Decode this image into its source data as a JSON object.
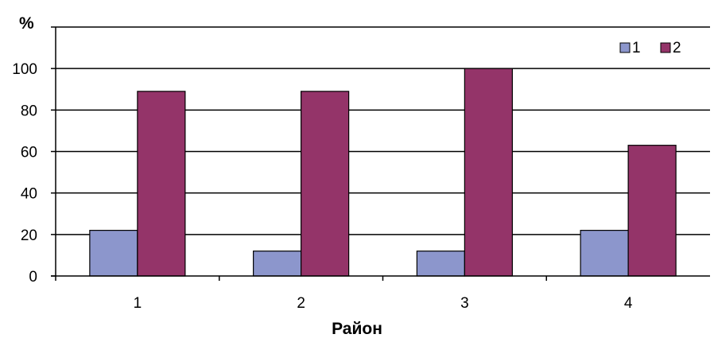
{
  "chart_data": {
    "type": "bar",
    "title": "",
    "ylabel": "%",
    "xlabel": "Район",
    "categories": [
      "1",
      "2",
      "3",
      "4"
    ],
    "series": [
      {
        "name": "1",
        "values": [
          22,
          12,
          12,
          22
        ],
        "color": "#8c96cc"
      },
      {
        "name": "2",
        "values": [
          89,
          89,
          100,
          63
        ],
        "color": "#943469"
      }
    ],
    "ylim": [
      0,
      120
    ],
    "yticks": [
      "0",
      "20",
      "40",
      "60",
      "80",
      "100"
    ],
    "grid": true,
    "legend_position": "top-right"
  }
}
